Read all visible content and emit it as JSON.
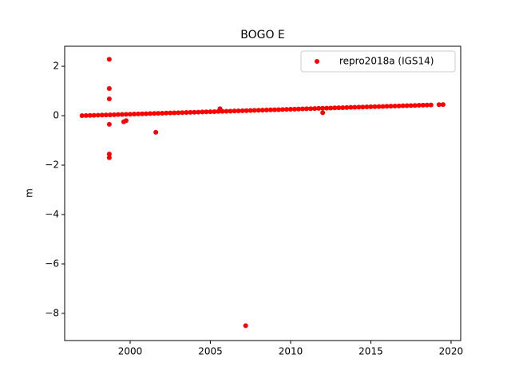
{
  "chart_data": {
    "type": "scatter",
    "title": "BOGO E",
    "y_label": "m",
    "xlim": [
      1995.92,
      2020.6
    ],
    "ylim": [
      -9.1,
      2.81
    ],
    "xticks": [
      2000,
      2005,
      2010,
      2015,
      2020
    ],
    "yticks": [
      {
        "value": -8,
        "label": "−8"
      },
      {
        "value": -6,
        "label": "−6"
      },
      {
        "value": -4,
        "label": "−4"
      },
      {
        "value": -2,
        "label": "−2"
      },
      0,
      2
    ],
    "legend": "upper right",
    "grid": false,
    "series": [
      {
        "name": "repro2018a (IGS14)",
        "color": "#ff0000",
        "x": [
          1997,
          1997.25,
          1997.5,
          1997.75,
          1998,
          1998.25,
          1998.5,
          1998.75,
          1999,
          1999.25,
          1999.5,
          1999.75,
          2000,
          2000.25,
          2000.5,
          2000.75,
          2001,
          2001.25,
          2001.5,
          2001.75,
          2002,
          2002.25,
          2002.5,
          2002.75,
          2003,
          2003.25,
          2003.5,
          2003.75,
          2004,
          2004.25,
          2004.5,
          2004.75,
          2005,
          2005.25,
          2005.5,
          2005.75,
          2006,
          2006.25,
          2006.5,
          2006.75,
          2007,
          2007.25,
          2007.5,
          2007.75,
          2008,
          2008.25,
          2008.5,
          2008.75,
          2009,
          2009.25,
          2009.5,
          2009.75,
          2010,
          2010.25,
          2010.5,
          2010.75,
          2011,
          2011.25,
          2011.5,
          2011.75,
          2012,
          2012.25,
          2012.5,
          2012.75,
          2013,
          2013.25,
          2013.5,
          2013.75,
          2014,
          2014.25,
          2014.5,
          2014.75,
          2015,
          2015.25,
          2015.5,
          2015.75,
          2016,
          2016.25,
          2016.5,
          2016.75,
          2017,
          2017.25,
          2017.5,
          2017.75,
          2018,
          2018.25,
          2018.5,
          2018.75,
          2019.25,
          2019.5,
          1998.7,
          1998.7,
          1998.7,
          1998.7,
          1998.7,
          1998.7,
          1999.6,
          1999.75,
          2001.6,
          2005.6,
          2007.2,
          2012
        ],
        "values": [
          0,
          0.005,
          0.01,
          0.015,
          0.02,
          0.025,
          0.03,
          0.035,
          0.04,
          0.045,
          0.05,
          0.055,
          0.06,
          0.065,
          0.07,
          0.075,
          0.08,
          0.085,
          0.09,
          0.095,
          0.1,
          0.105,
          0.11,
          0.115,
          0.12,
          0.125,
          0.13,
          0.135,
          0.14,
          0.145,
          0.15,
          0.155,
          0.16,
          0.165,
          0.17,
          0.175,
          0.18,
          0.185,
          0.19,
          0.195,
          0.2,
          0.205,
          0.21,
          0.215,
          0.22,
          0.225,
          0.23,
          0.235,
          0.24,
          0.245,
          0.25,
          0.255,
          0.26,
          0.265,
          0.27,
          0.275,
          0.28,
          0.285,
          0.29,
          0.295,
          0.3,
          0.305,
          0.31,
          0.315,
          0.32,
          0.325,
          0.33,
          0.335,
          0.34,
          0.345,
          0.35,
          0.355,
          0.36,
          0.365,
          0.37,
          0.375,
          0.38,
          0.385,
          0.39,
          0.395,
          0.4,
          0.405,
          0.41,
          0.415,
          0.42,
          0.425,
          0.43,
          0.435,
          0.445,
          0.45,
          2.28,
          1.1,
          0.68,
          -0.35,
          -1.55,
          -1.7,
          -0.25,
          -0.2,
          -0.67,
          0.28,
          -8.5,
          0.12
        ]
      }
    ]
  }
}
